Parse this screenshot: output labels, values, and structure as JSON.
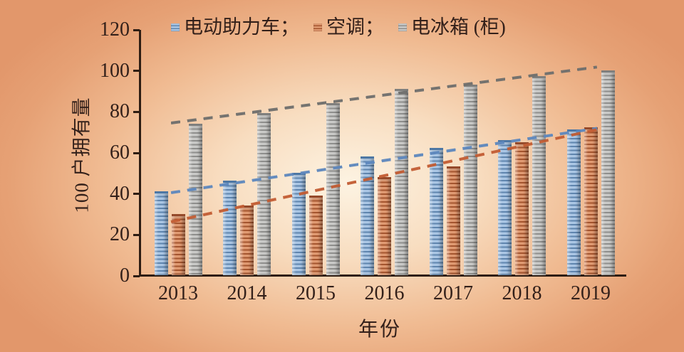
{
  "chart_data": {
    "type": "bar",
    "title": "",
    "categories": [
      "2013",
      "2014",
      "2015",
      "2016",
      "2017",
      "2018",
      "2019"
    ],
    "series": [
      {
        "name": "电动助力车",
        "legend_label": "电动助力车；",
        "values": [
          41,
          46,
          50,
          58,
          62,
          66,
          71
        ],
        "colors": {
          "light": "#aac6e4",
          "dark": "#5f85ae",
          "cap": "#4d77a4",
          "trend": "#5d87bd"
        },
        "trend": {
          "start_value": 40.6,
          "end_value": 72.0
        }
      },
      {
        "name": "空调",
        "legend_label": "空调；",
        "values": [
          30,
          34,
          39,
          48,
          53,
          65,
          72
        ],
        "colors": {
          "light": "#e09a72",
          "dark": "#a4552f",
          "cap": "#94492a",
          "trend": "#c25c33"
        },
        "trend": {
          "start_value": 26.4,
          "end_value": 71.4
        }
      },
      {
        "name": "电冰箱 (柜)",
        "legend_label": "电冰箱 (柜)",
        "values": [
          74,
          79,
          84,
          91,
          93,
          97,
          100
        ],
        "colors": {
          "light": "#c9c9c7",
          "dark": "#8e8e8c",
          "cap": "#7f7f7d",
          "trend": "#6e6e6c"
        },
        "trend": {
          "start_value": 74.6,
          "end_value": 101.9
        }
      }
    ],
    "xlabel": "年份",
    "ylabel": "100 户拥有量",
    "ylim": [
      0,
      120
    ],
    "yticks": [
      0,
      20,
      40,
      60,
      80,
      100,
      120
    ],
    "grid": false,
    "legend_position": "top"
  },
  "colors": {
    "text": "#33201a",
    "axis": "#2e1d13",
    "background_edge": "#e2976b",
    "background_center": "#fdf3e2"
  }
}
